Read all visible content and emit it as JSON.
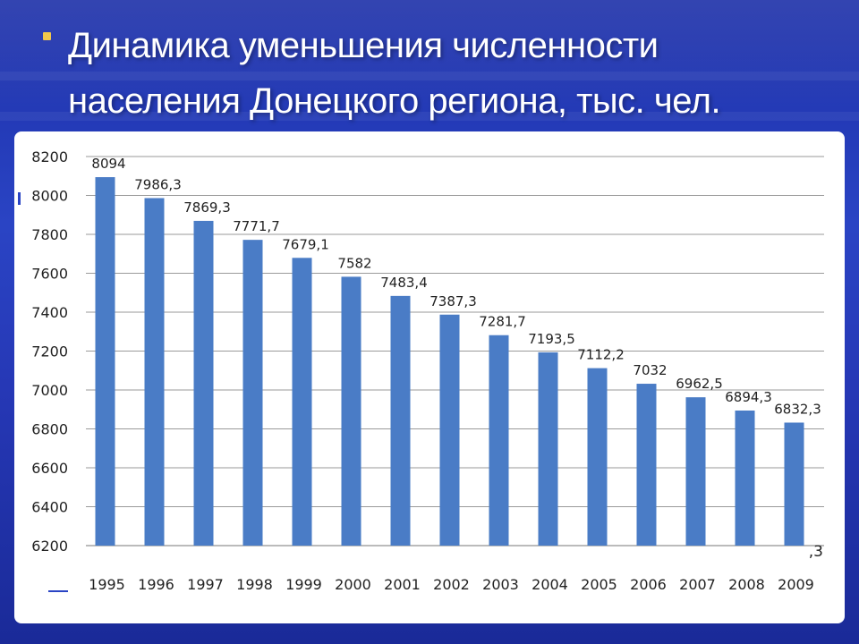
{
  "slide": {
    "title": "Динамика уменьшения численности населения Донецкого региона, тыс. чел.",
    "accent_color": "#f2c84b",
    "background_color": "#2a44c4"
  },
  "chart_data": {
    "type": "bar",
    "title": "Динамика уменьшения численности населения Донецкого региона, тыс. чел.",
    "xlabel": "",
    "ylabel": "",
    "categories": [
      "1995",
      "1996",
      "1997",
      "1998",
      "1999",
      "2000",
      "2001",
      "2002",
      "2003",
      "2004",
      "2005",
      "2006",
      "2007",
      "2008",
      "2009"
    ],
    "values": [
      8094,
      7986.3,
      7869.3,
      7771.7,
      7679.1,
      7582,
      7483.4,
      7387.3,
      7281.7,
      7193.5,
      7112.2,
      7032,
      6962.5,
      6894.3,
      6832.3
    ],
    "value_labels": [
      "8094",
      "7986,3",
      "7869,3",
      "7771,7",
      "7679,1",
      "7582",
      "7483,4",
      "7387,3",
      "7281,7",
      "7193,5",
      "7112,2",
      "7032",
      "6962,5",
      "6894,3",
      "6832,3"
    ],
    "y_ticks": [
      "6200",
      "6400",
      "6600",
      "6800",
      "7000",
      "7200",
      "7400",
      "7600",
      "7800",
      "8000",
      "8200"
    ],
    "ylim": [
      6200,
      8200
    ],
    "grid": true,
    "legend": "none",
    "bar_color": "#4a7cc6",
    "cut_off_label": ",3"
  }
}
